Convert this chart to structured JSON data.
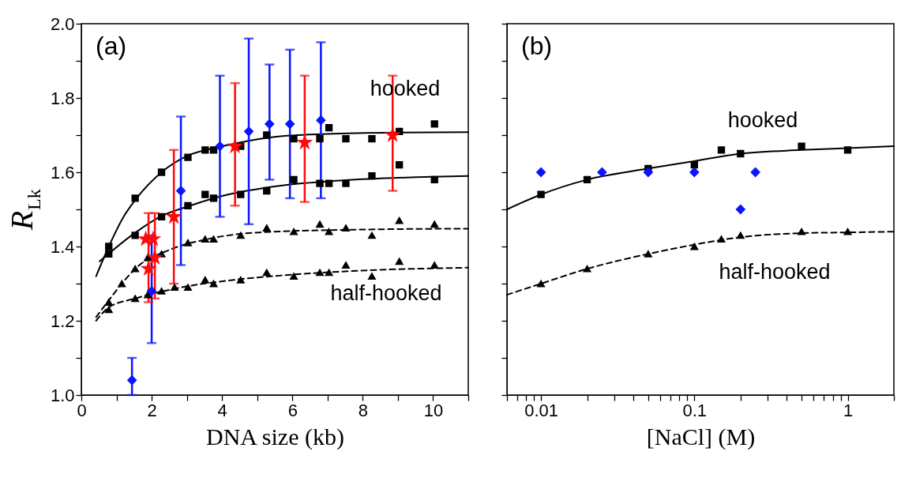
{
  "chart_data": [
    {
      "type": "scatter",
      "xlabel": "DNA size (kb)",
      "ylabel": "R$_{Lk}$",
      "xlim": [
        0,
        11
      ],
      "ylim": [
        1.0,
        2.0
      ],
      "xticks": [
        0,
        {
          "value": 1,
          "label": null
        },
        2,
        {
          "value": 3,
          "label": null
        },
        4,
        {
          "value": 5,
          "label": null
        },
        6,
        {
          "value": 7,
          "label": null
        },
        8,
        {
          "value": 9,
          "label": null
        },
        10,
        {
          "value": 11,
          "label": null
        }
      ],
      "yticks": [
        {
          "value": 1.0,
          "label": "1.0"
        },
        {
          "value": 1.1,
          "label": null
        },
        {
          "value": 1.2,
          "label": "1.2"
        },
        {
          "value": 1.3,
          "label": null
        },
        {
          "value": 1.4,
          "label": "1.4"
        },
        {
          "value": 1.5,
          "label": null
        },
        {
          "value": 1.6,
          "label": "1.6"
        },
        {
          "value": 1.7,
          "label": null
        },
        {
          "value": 1.8,
          "label": "1.8"
        },
        {
          "value": 1.9,
          "label": null
        },
        {
          "value": 2.0,
          "label": "2.0"
        }
      ],
      "grid": false,
      "annotations": [
        "(a)",
        "hooked",
        "half-hooked"
      ],
      "series": [
        {
          "type": "line",
          "color": "#000000",
          "line_style": "solid",
          "x": [
            0.42,
            0.78,
            1.2,
            1.53,
            2.28,
            3.03,
            3.76,
            4.5,
            5.5,
            7,
            9,
            11
          ],
          "values": [
            1.32,
            1.4,
            1.48,
            1.525,
            1.6,
            1.645,
            1.665,
            1.68,
            1.695,
            1.703,
            1.707,
            1.708
          ]
        },
        {
          "type": "line",
          "color": "#000000",
          "line_style": "solid",
          "x": [
            0.52,
            1.53,
            2.28,
            3.03,
            3.96,
            5.67,
            7.44,
            11
          ],
          "values": [
            1.36,
            1.437,
            1.482,
            1.508,
            1.535,
            1.564,
            1.578,
            1.59
          ]
        },
        {
          "type": "line",
          "color": "#000000",
          "line_style": "dashed",
          "x": [
            0.42,
            0.78,
            1.15,
            1.59,
            2.48,
            3.59,
            5.07,
            8.19,
            11
          ],
          "values": [
            1.21,
            1.255,
            1.3,
            1.345,
            1.39,
            1.42,
            1.438,
            1.446,
            1.448
          ]
        },
        {
          "type": "line",
          "color": "#000000",
          "line_style": "dashed",
          "x": [
            0.42,
            0.78,
            1.53,
            2.85,
            4.33,
            5.96,
            8.19,
            11
          ],
          "values": [
            1.2,
            1.236,
            1.26,
            1.29,
            1.31,
            1.324,
            1.336,
            1.343
          ]
        },
        {
          "type": "scatter",
          "marker": "square",
          "color": "#000000",
          "x": [
            0.78,
            1.53,
            2.28,
            3.03,
            3.52,
            3.76,
            4.53,
            5.27,
            6.04,
            6.78,
            7.04,
            7.52,
            8.26,
            9.04,
            10.04
          ],
          "values": [
            1.4,
            1.53,
            1.6,
            1.64,
            1.66,
            1.66,
            1.67,
            1.7,
            1.69,
            1.69,
            1.72,
            1.69,
            1.69,
            1.71,
            1.73
          ]
        },
        {
          "type": "scatter",
          "marker": "square",
          "color": "#000000",
          "x": [
            0.78,
            1.53,
            2.28,
            3.03,
            3.52,
            3.76,
            4.53,
            5.27,
            6.04,
            6.78,
            7.04,
            7.52,
            8.26,
            9.04,
            10.04
          ],
          "values": [
            1.38,
            1.43,
            1.48,
            1.51,
            1.54,
            1.53,
            1.54,
            1.55,
            1.58,
            1.57,
            1.57,
            1.57,
            1.59,
            1.62,
            1.58
          ]
        },
        {
          "type": "scatter",
          "marker": "triangle",
          "color": "#000000",
          "x": [
            0.78,
            1.15,
            1.53,
            1.89,
            2.28,
            3.03,
            3.52,
            3.76,
            4.53,
            5.27,
            6.04,
            6.78,
            7.04,
            7.52,
            8.26,
            9.04,
            10.04
          ],
          "values": [
            1.25,
            1.3,
            1.34,
            1.37,
            1.38,
            1.41,
            1.42,
            1.42,
            1.43,
            1.45,
            1.44,
            1.46,
            1.44,
            1.45,
            1.43,
            1.47,
            1.46
          ]
        },
        {
          "type": "scatter",
          "marker": "triangle",
          "color": "#000000",
          "x": [
            0.78,
            1.53,
            1.89,
            2.28,
            2.65,
            3.03,
            3.52,
            3.76,
            4.53,
            5.27,
            6.04,
            6.78,
            7.04,
            7.52,
            8.26,
            9.04,
            10.04
          ],
          "values": [
            1.23,
            1.26,
            1.27,
            1.28,
            1.29,
            1.29,
            1.31,
            1.3,
            1.31,
            1.33,
            1.32,
            1.33,
            1.33,
            1.35,
            1.32,
            1.36,
            1.35
          ]
        },
        {
          "type": "scatter",
          "marker": "diamond",
          "color": "#0a14ff",
          "x": [
            1.44,
            2.0,
            2.83,
            3.94,
            4.76,
            5.35,
            5.93,
            6.81
          ],
          "values": [
            1.04,
            1.28,
            1.55,
            1.67,
            1.71,
            1.73,
            1.73,
            1.74
          ],
          "errors": [
            [
              1.0,
              1.1
            ],
            [
              1.14,
              1.43
            ],
            [
              1.35,
              1.75
            ],
            [
              1.48,
              1.86
            ],
            [
              1.46,
              1.96
            ],
            [
              1.58,
              1.89
            ],
            [
              1.53,
              1.93
            ],
            [
              1.53,
              1.95
            ]
          ]
        },
        {
          "type": "scatter",
          "marker": "star",
          "color": "#ff0a0a",
          "x": [
            1.83,
            2.04,
            2.09,
            1.91,
            2.63,
            4.37,
            6.35,
            8.85
          ],
          "values": [
            1.42,
            1.42,
            1.37,
            1.34,
            1.48,
            1.67,
            1.68,
            1.7
          ],
          "errors": [
            null,
            null,
            [
              1.26,
              1.49
            ],
            [
              1.25,
              1.49
            ],
            [
              1.3,
              1.66
            ],
            [
              1.51,
              1.84
            ],
            [
              1.52,
              1.86
            ],
            [
              1.55,
              1.86
            ]
          ]
        }
      ]
    },
    {
      "type": "scatter",
      "xlabel": "[NaCl] (M)",
      "log": "x",
      "tick_labels": "x",
      "xlim": [
        0.006,
        2
      ],
      "ylim": [
        1.0,
        2.0
      ],
      "xticks": [
        {
          "value": 0.006,
          "label": null
        },
        {
          "value": 0.007,
          "label": null
        },
        {
          "value": 0.008,
          "label": null
        },
        {
          "value": 0.009,
          "label": null
        },
        0.01,
        {
          "value": 0.02,
          "label": null
        },
        {
          "value": 0.03,
          "label": null
        },
        {
          "value": 0.04,
          "label": null
        },
        {
          "value": 0.05,
          "label": null
        },
        {
          "value": 0.06,
          "label": null
        },
        {
          "value": 0.07,
          "label": null
        },
        {
          "value": 0.08,
          "label": null
        },
        {
          "value": 0.09,
          "label": null
        },
        0.1,
        {
          "value": 0.2,
          "label": null
        },
        {
          "value": 0.3,
          "label": null
        },
        {
          "value": 0.4,
          "label": null
        },
        {
          "value": 0.5,
          "label": null
        },
        {
          "value": 0.6,
          "label": null
        },
        {
          "value": 0.7,
          "label": null
        },
        {
          "value": 0.8,
          "label": null
        },
        {
          "value": 0.9,
          "label": null
        },
        1,
        {
          "value": 2,
          "label": null
        }
      ],
      "yticks": [
        {
          "value": 1.0,
          "label": null
        },
        {
          "value": 1.1,
          "label": null
        },
        {
          "value": 1.2,
          "label": null
        },
        {
          "value": 1.3,
          "label": null
        },
        {
          "value": 1.4,
          "label": null
        },
        {
          "value": 1.5,
          "label": null
        },
        {
          "value": 1.6,
          "label": null
        },
        {
          "value": 1.7,
          "label": null
        },
        {
          "value": 1.8,
          "label": null
        },
        {
          "value": 1.9,
          "label": null
        },
        {
          "value": 2.0,
          "label": null
        }
      ],
      "grid": false,
      "annotations": [
        "(b)",
        "hooked",
        "half-hooked"
      ],
      "series": [
        {
          "type": "line",
          "color": "#000000",
          "line_style": "solid",
          "x": [
            0.006,
            0.01,
            0.02,
            0.05,
            0.1,
            0.2,
            0.5,
            1,
            2
          ],
          "values": [
            1.5,
            1.54,
            1.58,
            1.61,
            1.63,
            1.65,
            1.66,
            1.665,
            1.67
          ]
        },
        {
          "type": "line",
          "color": "#000000",
          "line_style": "dashed",
          "x": [
            0.006,
            0.01,
            0.02,
            0.05,
            0.1,
            0.2,
            0.5,
            1,
            2
          ],
          "values": [
            1.27,
            1.3,
            1.34,
            1.38,
            1.405,
            1.425,
            1.436,
            1.438,
            1.44
          ]
        },
        {
          "type": "scatter",
          "marker": "square",
          "color": "#000000",
          "x": [
            0.01,
            0.02,
            0.05,
            0.1,
            0.15,
            0.2,
            0.5,
            1
          ],
          "values": [
            1.54,
            1.58,
            1.61,
            1.62,
            1.66,
            1.65,
            1.67,
            1.66
          ]
        },
        {
          "type": "scatter",
          "marker": "triangle",
          "color": "#000000",
          "x": [
            0.01,
            0.02,
            0.05,
            0.1,
            0.15,
            0.2,
            0.5,
            1
          ],
          "values": [
            1.3,
            1.34,
            1.38,
            1.4,
            1.42,
            1.43,
            1.44,
            1.44
          ]
        },
        {
          "type": "scatter",
          "marker": "diamond",
          "color": "#0a14ff",
          "x": [
            0.01,
            0.025,
            0.05,
            0.1,
            0.2,
            0.25
          ],
          "values": [
            1.6,
            1.6,
            1.6,
            1.6,
            1.5,
            1.6
          ]
        }
      ]
    }
  ]
}
